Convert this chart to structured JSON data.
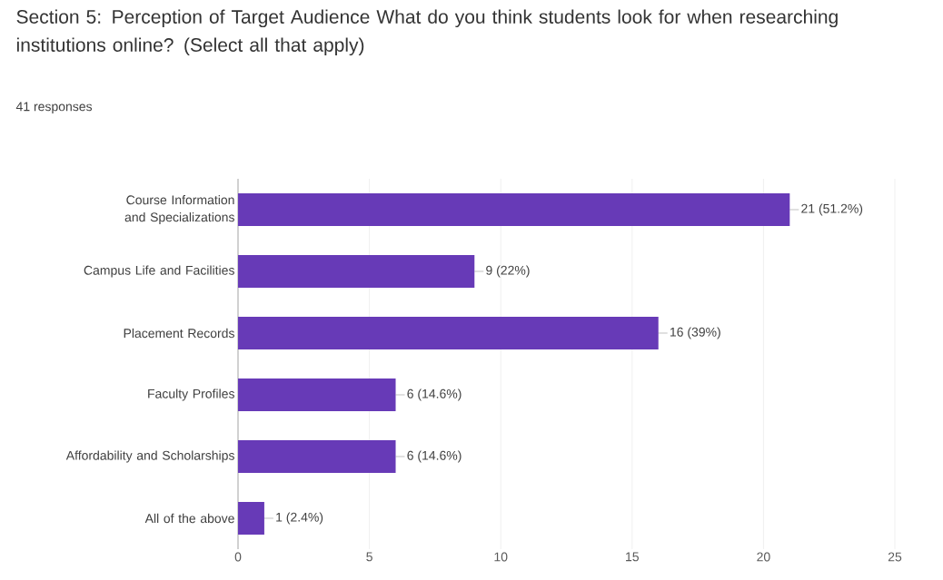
{
  "chart_data": {
    "type": "bar",
    "orientation": "horizontal",
    "title": "Section 5: Perception of Target Audience  What do you think students look for when researching institutions online? (Select all that apply)",
    "subtitle": "41 responses",
    "categories": [
      "Course Information and Specializations",
      "Campus Life and Facilities",
      "Placement Records",
      "Faculty Profiles",
      "Affordability and Scholarships",
      "All of the above"
    ],
    "values": [
      21,
      9,
      16,
      6,
      6,
      1
    ],
    "value_labels": [
      "21 (51.2%)",
      "9 (22%)",
      "16 (39%)",
      "6 (14.6%)",
      "6 (14.6%)",
      "1 (2.4%)"
    ],
    "color": "#673ab7",
    "xlim": [
      0,
      25
    ],
    "xticks": [
      0,
      5,
      10,
      15,
      20,
      25
    ],
    "grid": "x"
  }
}
